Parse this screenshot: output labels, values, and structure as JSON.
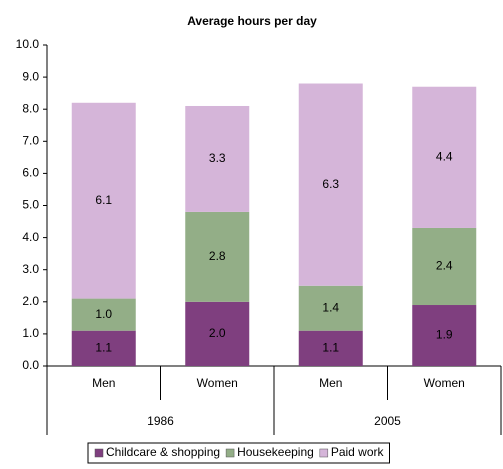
{
  "chart_data": {
    "type": "stacked-bar",
    "title": "Average hours per day",
    "categories": [
      "Men",
      "Women",
      "Men",
      "Women"
    ],
    "groups": [
      "1986",
      "2005"
    ],
    "series": [
      {
        "name": "Childcare & shopping",
        "color": "#7f3f7f",
        "values": [
          1.1,
          2.0,
          1.1,
          1.9
        ],
        "value_labels": [
          "1.1",
          "2.0",
          "1.1",
          "1.9"
        ]
      },
      {
        "name": "Housekeeping",
        "color": "#93ae87",
        "values": [
          1.0,
          2.8,
          1.4,
          2.4
        ],
        "value_labels": [
          "1.0",
          "2.8",
          "1.4",
          "2.4"
        ]
      },
      {
        "name": "Paid work",
        "color": "#d5b5d9",
        "values": [
          6.1,
          3.3,
          6.3,
          4.4
        ],
        "value_labels": [
          "6.1",
          "3.3",
          "6.3",
          "4.4"
        ]
      }
    ],
    "ylim": [
      0,
      10
    ],
    "yticks": [
      {
        "value": 0,
        "label": "0.0"
      },
      {
        "value": 1,
        "label": "1.0"
      },
      {
        "value": 2,
        "label": "2.0"
      },
      {
        "value": 3,
        "label": "3.0"
      },
      {
        "value": 4,
        "label": "4.0"
      },
      {
        "value": 5,
        "label": "5.0"
      },
      {
        "value": 6,
        "label": "6.0"
      },
      {
        "value": 7,
        "label": "7.0"
      },
      {
        "value": 8,
        "label": "8.0"
      },
      {
        "value": 9,
        "label": "9.0"
      },
      {
        "value": 10,
        "label": "10.0"
      }
    ],
    "grid": false,
    "legend": "bottom"
  }
}
